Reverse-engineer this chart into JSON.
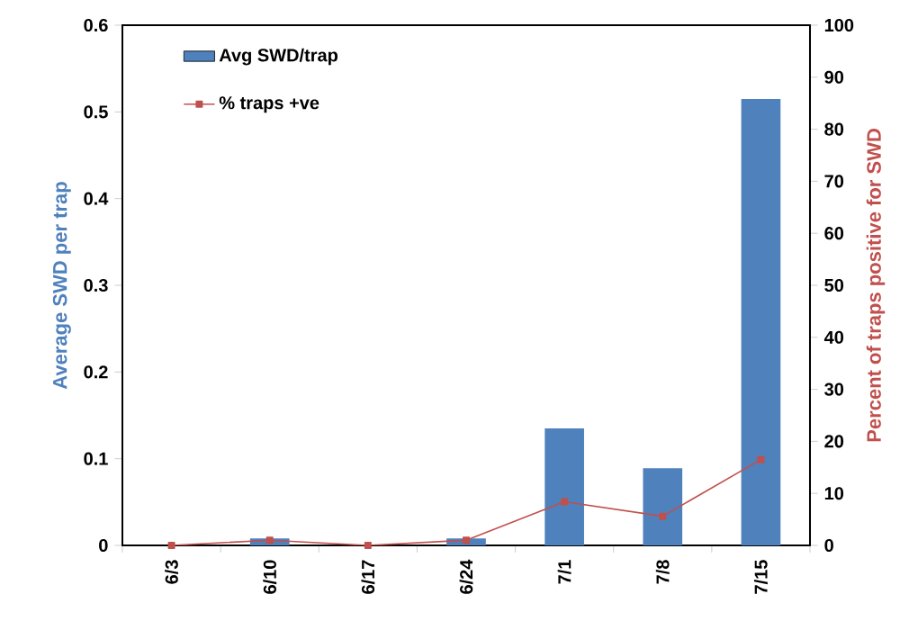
{
  "chart_data": {
    "type": "bar",
    "categories": [
      "6/3",
      "6/10",
      "6/17",
      "6/24",
      "7/1",
      "7/8",
      "7/15"
    ],
    "series": [
      {
        "name": "Avg SWD/trap",
        "color": "#4f81bd",
        "values": [
          null,
          0.008,
          null,
          0.008,
          0.135,
          0.089,
          0.515
        ]
      },
      {
        "name": "% traps +ve",
        "type": "line",
        "axis": "y2",
        "color": "#c0504d",
        "values": [
          0,
          1,
          0,
          1,
          8.4,
          5.6,
          16.5
        ]
      }
    ],
    "ylabel": "Average SWD per trap",
    "y2label": "Percent of traps positive for SWD",
    "ylim": [
      0,
      0.6
    ],
    "yticks": [
      0,
      0.1,
      0.2,
      0.3,
      0.4,
      0.5,
      0.6
    ],
    "y2lim": [
      0,
      100
    ],
    "y2ticks": [
      0,
      10,
      20,
      30,
      40,
      50,
      60,
      70,
      80,
      90,
      100
    ],
    "legend": "top left",
    "marker": "square",
    "grid": false
  }
}
